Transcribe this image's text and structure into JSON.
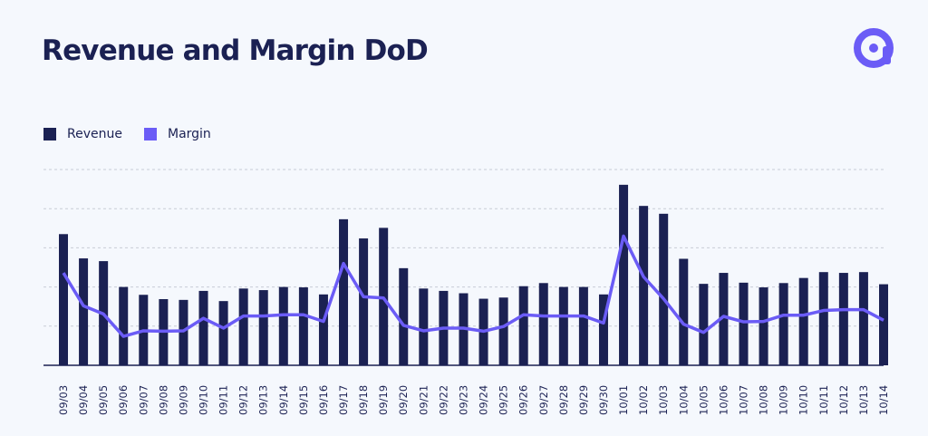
{
  "colors": {
    "background": "#f5f8fd",
    "text": "#1b2153",
    "revenue": "#1b2153",
    "margin": "#6b5cf6",
    "grid": "#c8ccd6"
  },
  "logo_icon": "brand-a-logo-icon",
  "chart_data": {
    "type": "bar",
    "title": "Revenue and Margin DoD",
    "xlabel": "",
    "ylabel": "",
    "legend_position": "top-left",
    "grid": true,
    "categories": [
      "09/03",
      "09/04",
      "09/05",
      "09/06",
      "09/07",
      "09/08",
      "09/09",
      "09/10",
      "09/11",
      "09/12",
      "09/13",
      "09/14",
      "09/15",
      "09/16",
      "09/17",
      "09/18",
      "09/19",
      "09/20",
      "09/21",
      "09/22",
      "09/23",
      "09/24",
      "09/25",
      "09/26",
      "09/27",
      "09/28",
      "09/29",
      "09/30",
      "10/01",
      "10/02",
      "10/03",
      "10/04",
      "10/05",
      "10/06",
      "10/07",
      "10/08",
      "10/09",
      "10/10",
      "10/11",
      "10/12",
      "10/13",
      "10/14"
    ],
    "ylim": [
      0,
      5
    ],
    "series": [
      {
        "name": "Revenue",
        "kind": "bar",
        "values": [
          3.35,
          2.73,
          2.66,
          2.0,
          1.8,
          1.69,
          1.67,
          1.9,
          1.64,
          1.96,
          1.92,
          2.0,
          1.99,
          1.81,
          3.73,
          3.24,
          3.51,
          2.48,
          1.96,
          1.9,
          1.84,
          1.7,
          1.73,
          2.02,
          2.1,
          2.0,
          2.0,
          1.81,
          4.61,
          4.07,
          3.87,
          2.72,
          2.08,
          2.36,
          2.11,
          1.99,
          2.1,
          2.23,
          2.38,
          2.36,
          2.38,
          2.07
        ]
      },
      {
        "name": "Margin",
        "kind": "line",
        "values": [
          2.36,
          1.52,
          1.31,
          0.74,
          0.88,
          0.87,
          0.88,
          1.2,
          0.95,
          1.26,
          1.26,
          1.29,
          1.29,
          1.12,
          2.6,
          1.75,
          1.72,
          1.02,
          0.88,
          0.95,
          0.95,
          0.87,
          0.99,
          1.29,
          1.26,
          1.26,
          1.26,
          1.08,
          3.3,
          2.26,
          1.7,
          1.05,
          0.84,
          1.25,
          1.11,
          1.12,
          1.28,
          1.28,
          1.4,
          1.42,
          1.42,
          1.15
        ]
      }
    ]
  }
}
